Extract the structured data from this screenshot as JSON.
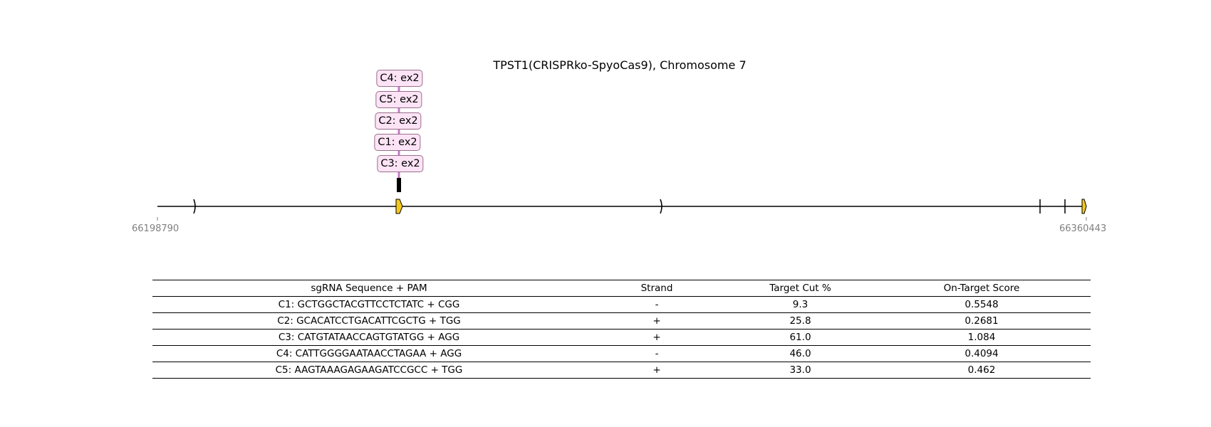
{
  "title": "TPST1(CRISPRko-SpyoCas9), Chromosome 7",
  "gene_track": {
    "start_coord": "66198790",
    "end_coord": "66360443",
    "accent_exon_color": "#f2c81c",
    "guide_line_color": "#c678c9",
    "label_background": "#fce4f6",
    "label_border": "#9a6e8a"
  },
  "guide_labels": [
    {
      "text": "C4: ex2"
    },
    {
      "text": "C5: ex2"
    },
    {
      "text": "C2: ex2"
    },
    {
      "text": "C1: ex2"
    },
    {
      "text": "C3: ex2"
    }
  ],
  "table": {
    "headers": [
      "sgRNA Sequence + PAM",
      "Strand",
      "Target Cut %",
      "On-Target Score"
    ],
    "rows": [
      [
        "C1: GCTGGCTACGTTCCTCTATC + CGG",
        "-",
        "9.3",
        "0.5548"
      ],
      [
        "C2: GCACATCCTGACATTCGCTG + TGG",
        "+",
        "25.8",
        "0.2681"
      ],
      [
        "C3: CATGTATAACCAGTGTATGG + AGG",
        "+",
        "61.0",
        "1.084"
      ],
      [
        "C4: CATTGGGGAATAACCTAGAA + AGG",
        "-",
        "46.0",
        "0.4094"
      ],
      [
        "C5: AAGTAAAGAGAAGATCCGCC + TGG",
        "+",
        "33.0",
        "0.462"
      ]
    ]
  }
}
